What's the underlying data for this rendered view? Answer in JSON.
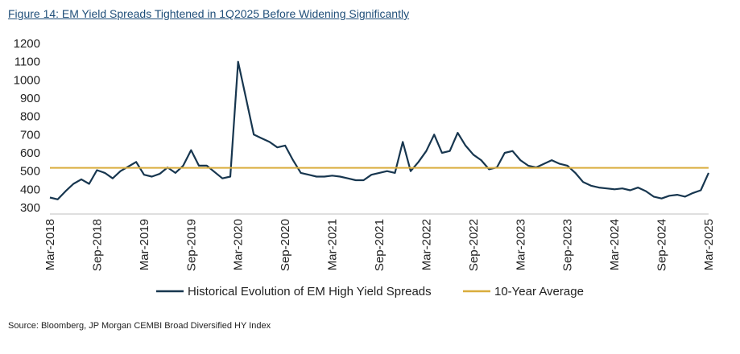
{
  "figure_title": "Figure 14: EM Yield Spreads Tightened in 1Q2025 Before Widening Significantly",
  "source_note": "Source: Bloomberg, JP Morgan CEMBI Broad Diversified HY Index",
  "colors": {
    "spread_line": "#17364f",
    "average_line": "#d9ad3c",
    "title": "#1f4e79"
  },
  "chart_data": {
    "type": "line",
    "title": "",
    "xlabel": "",
    "ylabel": "",
    "ylim": [
      300,
      1200
    ],
    "yticks": [
      300,
      400,
      500,
      600,
      700,
      800,
      900,
      1000,
      1100,
      1200
    ],
    "xlim": [
      "2018-03",
      "2025-03"
    ],
    "xticks": [
      "Mar-2018",
      "Sep-2018",
      "Mar-2019",
      "Sep-2019",
      "Mar-2020",
      "Sep-2020",
      "Mar-2021",
      "Sep-2021",
      "Mar-2022",
      "Sep-2022",
      "Mar-2023",
      "Sep-2023",
      "Mar-2024",
      "Sep-2024",
      "Mar-2025"
    ],
    "grid": false,
    "legend": "bottom",
    "series": [
      {
        "name": "Historical Evolution of EM High Yield Spreads",
        "x": [
          "2018-03",
          "2018-04",
          "2018-05",
          "2018-06",
          "2018-07",
          "2018-08",
          "2018-09",
          "2018-10",
          "2018-11",
          "2018-12",
          "2019-01",
          "2019-02",
          "2019-03",
          "2019-04",
          "2019-05",
          "2019-06",
          "2019-07",
          "2019-08",
          "2019-09",
          "2019-10",
          "2019-11",
          "2019-12",
          "2020-01",
          "2020-02",
          "2020-03",
          "2020-04",
          "2020-05",
          "2020-06",
          "2020-07",
          "2020-08",
          "2020-09",
          "2020-10",
          "2020-11",
          "2020-12",
          "2021-01",
          "2021-02",
          "2021-03",
          "2021-04",
          "2021-05",
          "2021-06",
          "2021-07",
          "2021-08",
          "2021-09",
          "2021-10",
          "2021-11",
          "2021-12",
          "2022-01",
          "2022-02",
          "2022-03",
          "2022-04",
          "2022-05",
          "2022-06",
          "2022-07",
          "2022-08",
          "2022-09",
          "2022-10",
          "2022-11",
          "2022-12",
          "2023-01",
          "2023-02",
          "2023-03",
          "2023-04",
          "2023-05",
          "2023-06",
          "2023-07",
          "2023-08",
          "2023-09",
          "2023-10",
          "2023-11",
          "2023-12",
          "2024-01",
          "2024-02",
          "2024-03",
          "2024-04",
          "2024-05",
          "2024-06",
          "2024-07",
          "2024-08",
          "2024-09",
          "2024-10",
          "2024-11",
          "2024-12",
          "2025-01",
          "2025-02",
          "2025-03"
        ],
        "values": [
          355,
          345,
          390,
          430,
          455,
          430,
          505,
          490,
          460,
          500,
          525,
          550,
          480,
          470,
          485,
          520,
          490,
          530,
          615,
          530,
          530,
          495,
          460,
          470,
          1100,
          900,
          700,
          680,
          660,
          630,
          640,
          560,
          490,
          480,
          470,
          470,
          475,
          470,
          460,
          450,
          450,
          480,
          490,
          500,
          490,
          660,
          500,
          550,
          610,
          700,
          600,
          610,
          710,
          640,
          590,
          560,
          510,
          520,
          600,
          610,
          560,
          530,
          520,
          540,
          560,
          540,
          530,
          490,
          440,
          420,
          410,
          405,
          400,
          405,
          395,
          410,
          390,
          360,
          350,
          365,
          370,
          360,
          380,
          395,
          490
        ]
      },
      {
        "name": "10-Year Average",
        "x": [
          "2018-03",
          "2025-03"
        ],
        "values": [
          518,
          518
        ]
      }
    ]
  }
}
